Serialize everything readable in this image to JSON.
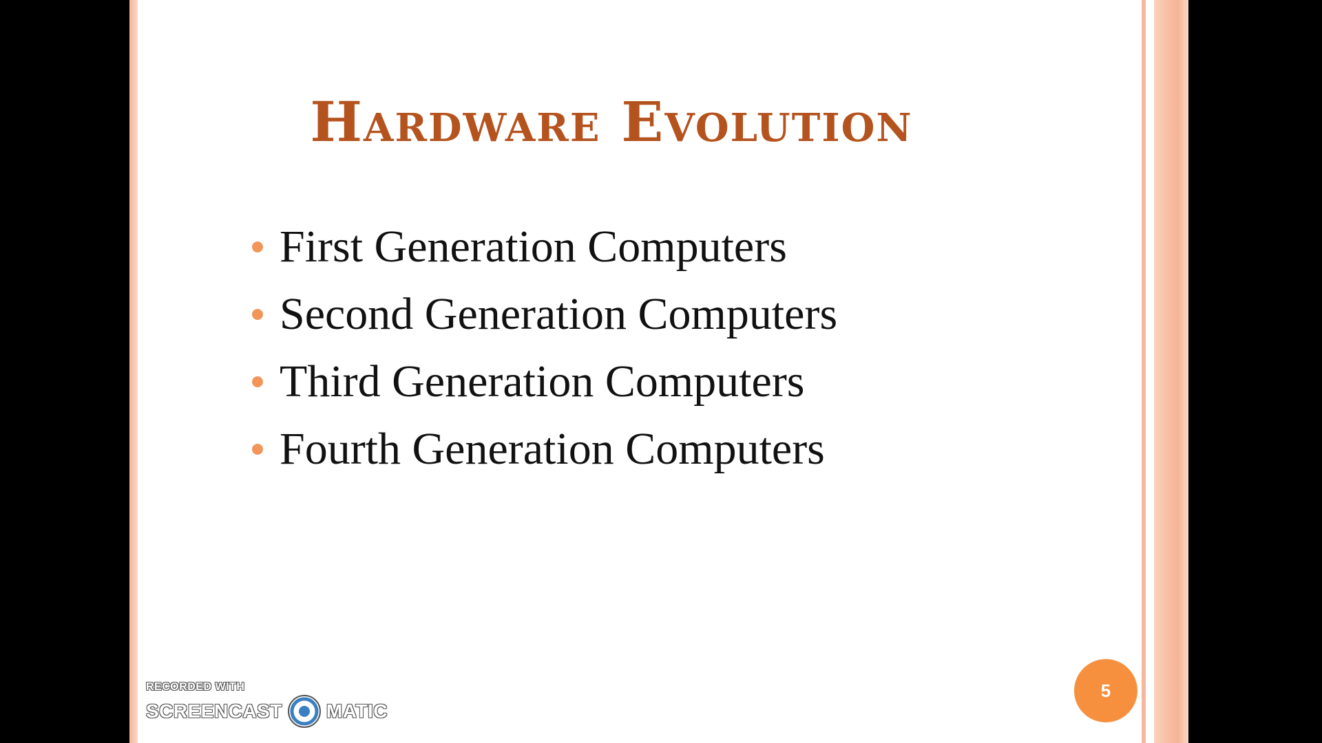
{
  "slide": {
    "title": "Hardware Evolution",
    "bullets": [
      "First Generation Computers",
      "Second Generation Computers",
      "Third Generation Computers",
      "Fourth Generation Computers"
    ],
    "page_number": "5"
  },
  "watermark": {
    "line1": "RECORDED WITH",
    "brand_left": "SCREENCAST",
    "brand_right": "MATIC",
    "logo_icon": "record-icon"
  },
  "colors": {
    "title": "#b5531f",
    "bullet_dot": "#f2955a",
    "badge": "#f6903e",
    "border": "#f6b496",
    "letterbox": "#000000"
  }
}
